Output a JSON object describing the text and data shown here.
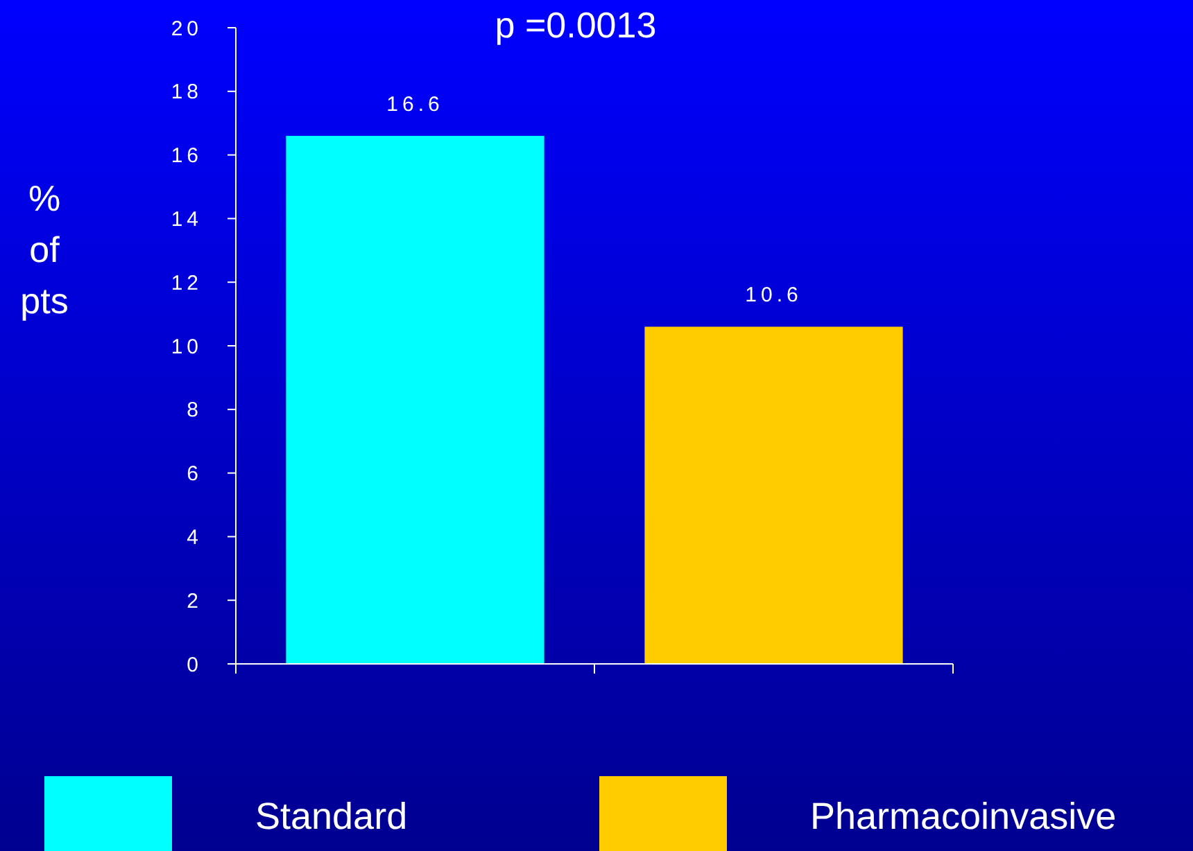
{
  "chart_data": {
    "type": "bar",
    "title": "p =0.0013",
    "ylabel": "% of pts",
    "categories": [
      null,
      null
    ],
    "series": [
      {
        "name": "Standard",
        "color": "#00ffff",
        "values": [
          16.6,
          null
        ]
      },
      {
        "name": "Pharmacoinvasive",
        "color": "#ffcc00",
        "values": [
          null,
          10.6
        ]
      }
    ],
    "ylim": [
      0,
      20
    ],
    "yticks": [
      0,
      2,
      4,
      6,
      8,
      10,
      12,
      14,
      16,
      18,
      20
    ],
    "data_labels": true,
    "legend": "bottom",
    "grid": false
  }
}
